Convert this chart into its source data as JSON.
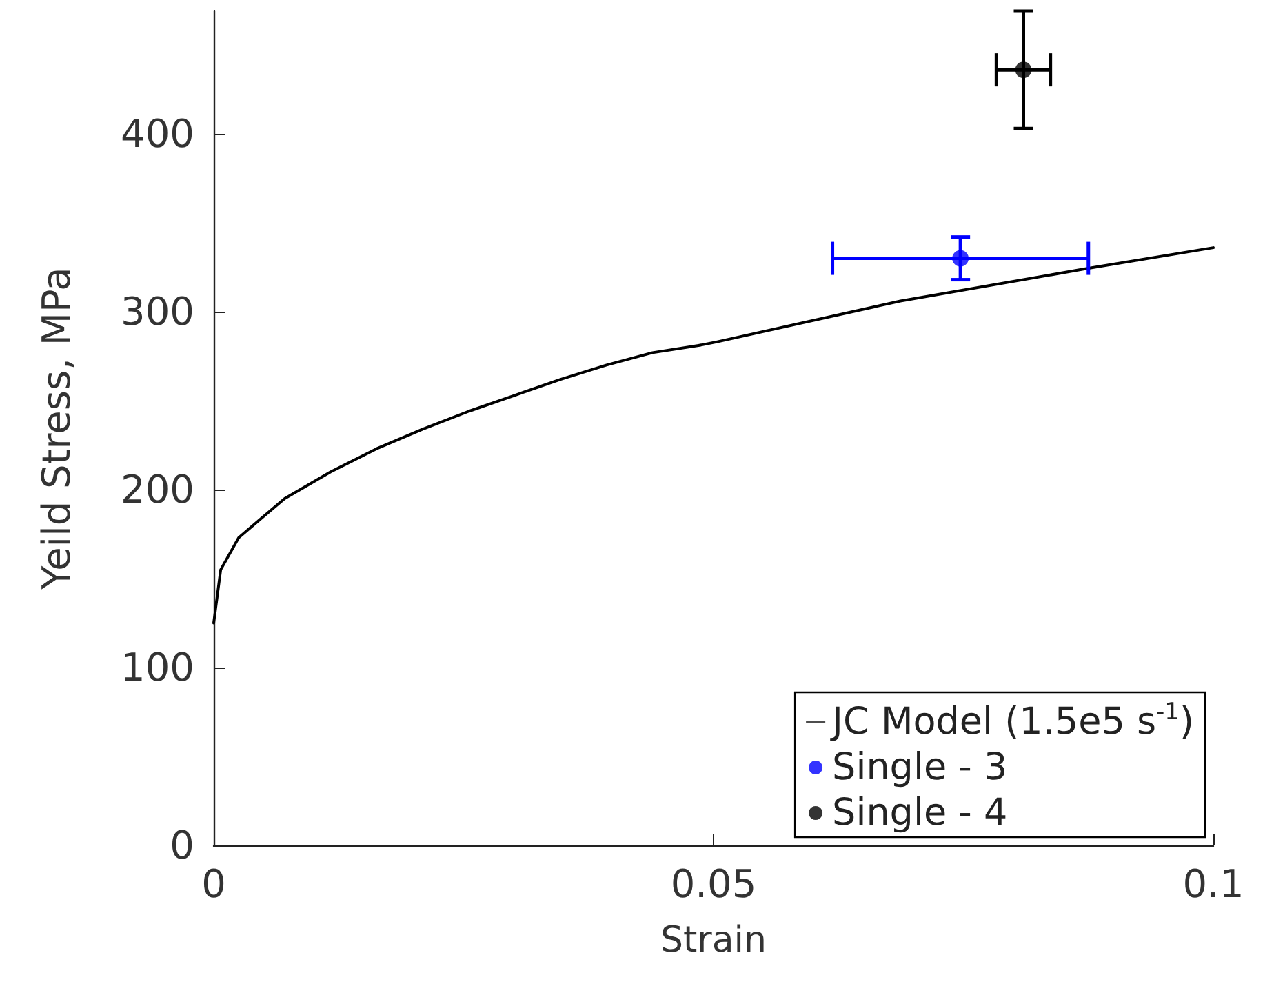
{
  "chart_data": {
    "type": "scatter",
    "xlabel": "Strain",
    "ylabel": "Yeild Stress, MPa",
    "xlim": [
      0,
      0.1
    ],
    "xticks": [
      0,
      0.05,
      0.1
    ],
    "ylim": [
      0,
      469
    ],
    "yticks": [
      0,
      100,
      200,
      300,
      400
    ],
    "grid": false,
    "legend": "bottom right",
    "marker": "circle",
    "series": [
      {
        "name": "JC Model (1.5e5 s$^{-1}$)",
        "type": "line",
        "marker": "none",
        "line_style": "solid",
        "color": "#000000",
        "x": [
          0,
          0.0007,
          0.0025,
          0.0048,
          0.0071,
          0.0117,
          0.0163,
          0.0209,
          0.0255,
          0.0301,
          0.0347,
          0.0393,
          0.0439,
          0.0485,
          0.0503,
          0.0687,
          0.0871,
          0.1
        ],
        "values": [
          125,
          155,
          173,
          184,
          195,
          210,
          223,
          234,
          244,
          253,
          262,
          270,
          277,
          281,
          283,
          306,
          324,
          336
        ]
      },
      {
        "name": "Single - 3",
        "color": "#0000ff",
        "x": [
          0.0747
        ],
        "values": [
          330
        ],
        "errors": [
          12
        ],
        "xerrors": [
          0.0128
        ]
      },
      {
        "name": "Single - 4",
        "color": "#000000",
        "x": [
          0.081
        ],
        "values": [
          436
        ],
        "errors": [
          33
        ],
        "xerrors": [
          0.0027
        ]
      }
    ]
  }
}
